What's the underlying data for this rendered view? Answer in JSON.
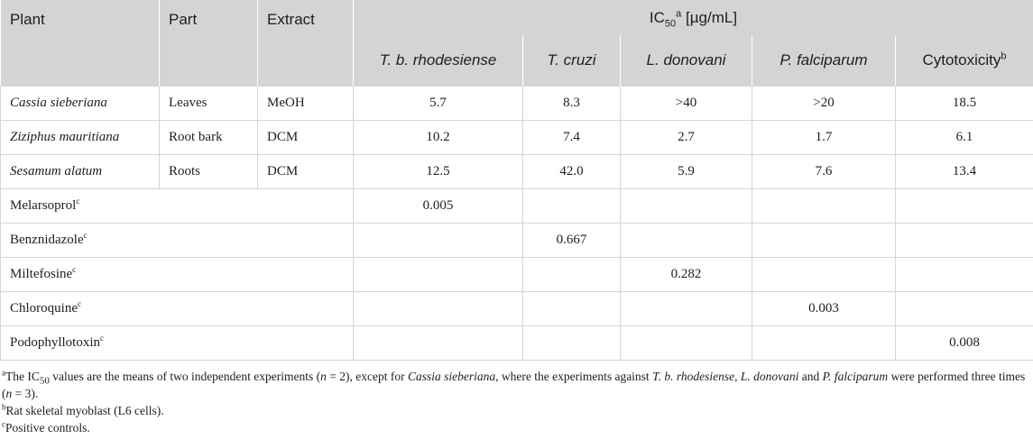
{
  "header": {
    "plant": "Plant",
    "part": "Part",
    "extract": "Extract",
    "ic50_prefix": "IC",
    "ic50_sub": "50",
    "ic50_sup": "a",
    "ic50_unit": " [µg/mL]",
    "columns": [
      "T. b. rhodesiense",
      "T. cruzi",
      "L. donovani",
      "P. falciparum"
    ],
    "cytotoxicity": "Cytotoxicity",
    "cytotoxicity_sup": "b"
  },
  "plant_rows": [
    {
      "plant": "Cassia sieberiana",
      "part": "Leaves",
      "extract": "MeOH",
      "values": [
        "5.7",
        "8.3",
        ">40",
        ">20",
        "18.5"
      ]
    },
    {
      "plant": "Ziziphus mauritiana",
      "part": "Root bark",
      "extract": "DCM",
      "values": [
        "10.2",
        "7.4",
        "2.7",
        "1.7",
        "6.1"
      ]
    },
    {
      "plant": "Sesamum alatum",
      "part": "Roots",
      "extract": "DCM",
      "values": [
        "12.5",
        "42.0",
        "5.9",
        "7.6",
        "13.4"
      ]
    }
  ],
  "control_rows": [
    {
      "name": "Melarsoprol",
      "sup": "c",
      "values": [
        "0.005",
        "",
        "",
        "",
        ""
      ]
    },
    {
      "name": "Benznidazole",
      "sup": "c",
      "values": [
        "",
        "0.667",
        "",
        "",
        ""
      ]
    },
    {
      "name": "Miltefosine",
      "sup": "c",
      "values": [
        "",
        "",
        "0.282",
        "",
        ""
      ]
    },
    {
      "name": "Chloroquine",
      "sup": "c",
      "values": [
        "",
        "",
        "",
        "0.003",
        ""
      ]
    },
    {
      "name": "Podophyllotoxin",
      "sup": "c",
      "values": [
        "",
        "",
        "",
        "",
        "0.008"
      ]
    }
  ],
  "footnotes": {
    "a": {
      "mark": "a",
      "t1": "The IC",
      "t1_sub": "50",
      "t2": " values are the means of two independent experiments (",
      "n1": "n",
      "t3": " = 2), except for ",
      "species1": "Cassia sieberiana",
      "t4": ", where the experiments against ",
      "species2": "T. b. rhodesiense",
      "t5": ", ",
      "species3": "L. donovani",
      "t6": " and ",
      "species4": "P. falciparum",
      "t7": " were performed three times (",
      "n2": "n",
      "t8": " = 3)."
    },
    "b": {
      "mark": "b",
      "text": "Rat skeletal myoblast (L6 cells)."
    },
    "c": {
      "mark": "c",
      "text": "Positive controls."
    }
  }
}
